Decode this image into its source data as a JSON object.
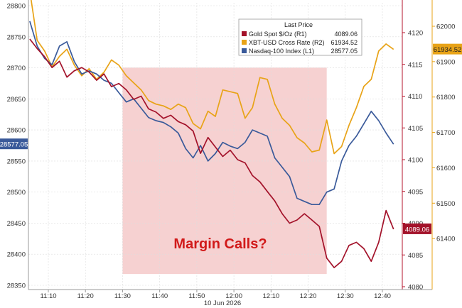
{
  "chart_data": {
    "type": "line",
    "title": "",
    "xlabel": "10 Jun 2026",
    "x": [
      "11:05",
      "11:07",
      "11:09",
      "11:11",
      "11:13",
      "11:15",
      "11:17",
      "11:19",
      "11:21",
      "11:23",
      "11:25",
      "11:27",
      "11:29",
      "11:31",
      "11:33",
      "11:35",
      "11:37",
      "11:39",
      "11:41",
      "11:43",
      "11:45",
      "11:47",
      "11:49",
      "11:51",
      "11:53",
      "11:55",
      "11:57",
      "11:59",
      "12:01",
      "12:03",
      "12:05",
      "12:07",
      "12:09",
      "12:11",
      "12:13",
      "12:15",
      "12:17",
      "12:19",
      "12:21",
      "12:23",
      "12:25",
      "12:27",
      "12:29",
      "12:31",
      "12:33",
      "12:35",
      "12:37",
      "12:39",
      "12:41",
      "12:43"
    ],
    "x_ticks": [
      "11:10",
      "11:20",
      "11:30",
      "11:40",
      "11:50",
      "12:00",
      "12:10",
      "12:20",
      "12:30",
      "12:40"
    ],
    "axes": {
      "left": {
        "name": "L1",
        "range": [
          28350,
          28800
        ],
        "ticks": [
          "28800",
          "28750",
          "28700",
          "28650",
          "28600",
          "28550",
          "28500",
          "28450",
          "28400",
          "28350"
        ]
      },
      "right1": {
        "name": "R1",
        "range": [
          4080,
          4124
        ],
        "ticks": [
          "4120",
          "4115",
          "4110",
          "4105",
          "4100",
          "4095",
          "4090",
          "4085",
          "4080"
        ]
      },
      "right2": {
        "name": "R2",
        "range": [
          61310,
          62120
        ],
        "ticks": [
          "62000",
          "61900",
          "61800",
          "61700",
          "61600",
          "61500",
          "61400"
        ]
      }
    },
    "legend": {
      "title": "Last Price",
      "position": "top-right"
    },
    "series": [
      {
        "name": "Gold Spot $/Oz",
        "axis": "R1",
        "axis_label": "(R1)",
        "last": "4089.06",
        "color": "#a3122a",
        "values": [
          4119.0,
          4117.5,
          4116.2,
          4114.5,
          4115.5,
          4113.0,
          4114.0,
          4114.5,
          4113.8,
          4112.5,
          4113.5,
          4111.5,
          4112.0,
          4111.0,
          4109.5,
          4110.0,
          4108.0,
          4107.5,
          4106.5,
          4107.0,
          4106.0,
          4105.5,
          4104.5,
          4101.0,
          4103.5,
          4102.0,
          4100.5,
          4101.5,
          4100.0,
          4099.5,
          4097.5,
          4096.5,
          4095.0,
          4093.5,
          4091.5,
          4090.0,
          4090.5,
          4091.5,
          4090.5,
          4089.5,
          4084.5,
          4083.0,
          4084.0,
          4086.5,
          4087.0,
          4086.0,
          4084.0,
          4087.0,
          4092.0,
          4089.06
        ]
      },
      {
        "name": "XBT-USD Cross Rate",
        "axis": "R2",
        "axis_label": "(R2)",
        "last": "61934.52",
        "color": "#e8a317",
        "values": [
          62100,
          61960,
          61930,
          61885,
          61915,
          61935,
          61890,
          61860,
          61880,
          61850,
          61870,
          61905,
          61890,
          61860,
          61840,
          61820,
          61790,
          61780,
          61775,
          61765,
          61780,
          61770,
          61725,
          61710,
          61760,
          61745,
          61820,
          61815,
          61810,
          61740,
          61770,
          61855,
          61850,
          61780,
          61740,
          61720,
          61685,
          61670,
          61645,
          61650,
          61735,
          61640,
          61660,
          61720,
          61770,
          61830,
          61850,
          61930,
          61950,
          61934.52
        ]
      },
      {
        "name": "Nasdaq-100 Index",
        "axis": "L1",
        "axis_label": "(L1)",
        "last": "28577.05",
        "color": "#3a5a9a",
        "values": [
          28775,
          28735,
          28715,
          28705,
          28735,
          28742,
          28710,
          28690,
          28695,
          28690,
          28680,
          28675,
          28660,
          28645,
          28650,
          28635,
          28620,
          28615,
          28612,
          28605,
          28595,
          28570,
          28555,
          28575,
          28550,
          28562,
          28580,
          28574,
          28570,
          28580,
          28600,
          28595,
          28590,
          28555,
          28540,
          28525,
          28490,
          28485,
          28480,
          28480,
          28500,
          28505,
          28550,
          28575,
          28590,
          28610,
          28630,
          28615,
          28595,
          28577.05
        ]
      }
    ],
    "annotations": [
      "Margin Calls?"
    ],
    "shaded_region": {
      "from": "11:30",
      "to": "12:25",
      "color": "#f5c9c9"
    }
  }
}
